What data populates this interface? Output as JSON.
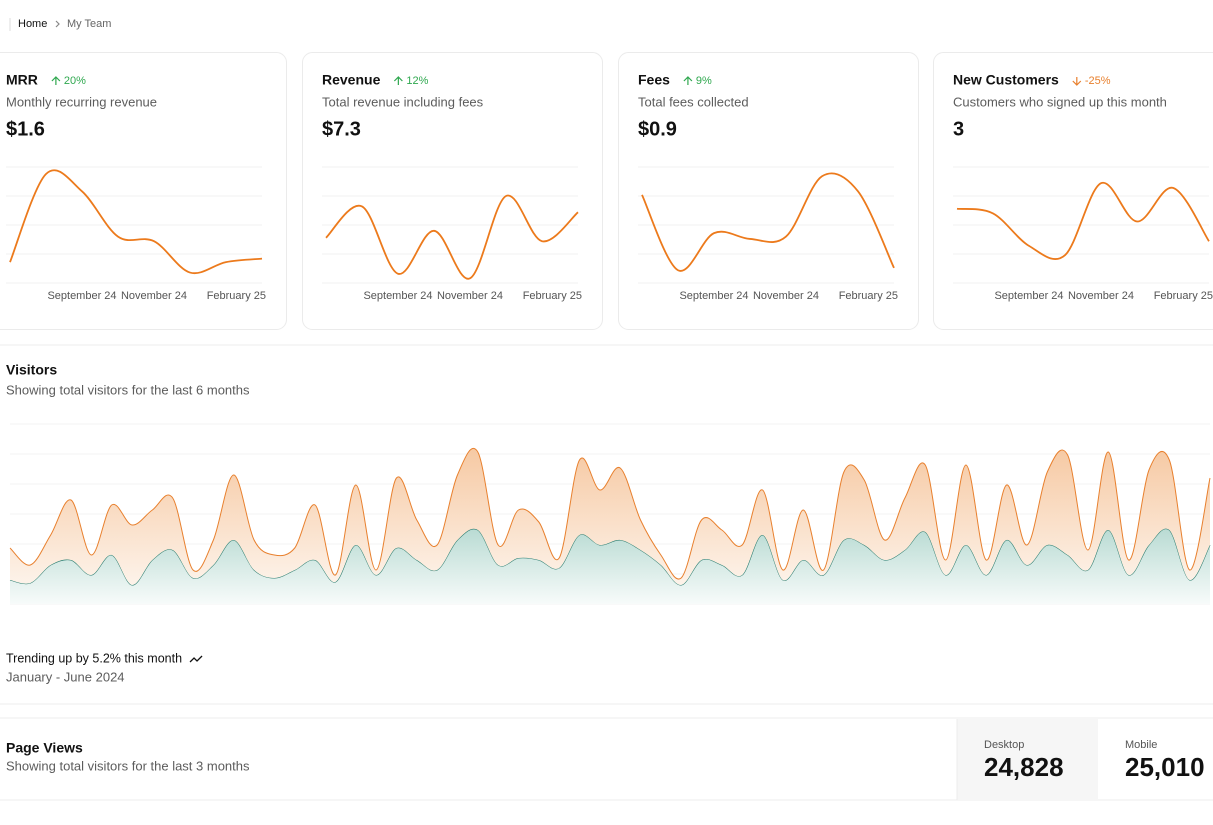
{
  "breadcrumb": [
    "Home",
    "My Team"
  ],
  "cards": [
    {
      "title": "MRR",
      "change": "20%",
      "description": "Monthly recurring revenue",
      "value": "$1.6",
      "chart": {
        "type": "line",
        "color": "#ec7a1c",
        "categories": [
          null,
          null,
          "September 24",
          null,
          "November 24",
          null,
          null,
          "February 25"
        ],
        "values": [
          18,
          94,
          79,
          40,
          36,
          9,
          18,
          21
        ],
        "ylim": [
          0,
          100
        ],
        "yticks": [
          0,
          25,
          50,
          75,
          100
        ],
        "grid": true
      }
    },
    {
      "title": "Revenue",
      "change": "12%",
      "description": "Total revenue including fees",
      "value": "$7.3",
      "chart": {
        "type": "line",
        "color": "#ec7a1c",
        "categories": [
          null,
          null,
          "September 24",
          null,
          "November 24",
          null,
          null,
          "February 25"
        ],
        "values": [
          39,
          66,
          8,
          45,
          4,
          75,
          36,
          61
        ],
        "ylim": [
          0,
          100
        ],
        "yticks": [
          0,
          25,
          50,
          75,
          100
        ],
        "grid": true
      }
    },
    {
      "title": "Fees",
      "change": "9%",
      "description": "Total fees collected",
      "value": "$0.9",
      "chart": {
        "type": "line",
        "color": "#ec7a1c",
        "categories": [
          null,
          null,
          "September 24",
          null,
          "November 24",
          null,
          null,
          "February 25"
        ],
        "values": [
          76,
          11,
          43,
          38,
          40,
          92,
          79,
          13
        ],
        "ylim": [
          0,
          100
        ],
        "yticks": [
          0,
          25,
          50,
          75,
          100
        ],
        "grid": true
      }
    },
    {
      "title": "New Customers",
      "change": "-25%",
      "description": "Customers who signed up this month",
      "value": "3",
      "chart": {
        "type": "line",
        "color": "#ec7a1c",
        "categories": [
          null,
          null,
          "September 24",
          null,
          "November 24",
          null,
          null,
          "February 25"
        ],
        "values": [
          64,
          60,
          32,
          24,
          86,
          53,
          82,
          36
        ],
        "ylim": [
          0,
          100
        ],
        "yticks": [
          0,
          25,
          50,
          75,
          100
        ],
        "grid": true
      }
    }
  ],
  "visitors": {
    "title": "Visitors",
    "subtitle": "Showing total visitors for the last 6 months",
    "chart": {
      "type": "area",
      "stacked": true,
      "ylim": [
        0,
        180
      ],
      "yticks": [
        0,
        30,
        60,
        90,
        120,
        150,
        180
      ],
      "grid": true,
      "series": [
        {
          "color": "#2a7d70",
          "values": [
            24,
            21,
            39,
            44,
            29,
            49,
            19,
            44,
            54,
            26,
            39,
            64,
            34,
            26,
            34,
            44,
            22,
            59,
            29,
            56,
            44,
            34,
            64,
            74,
            39,
            46,
            44,
            36,
            69,
            59,
            64,
            54,
            39,
            19,
            44,
            39,
            29,
            69,
            24,
            44,
            29,
            64,
            59,
            44,
            54,
            72,
            29,
            59,
            29,
            64,
            39,
            59,
            49,
            34,
            74,
            29,
            59,
            74,
            24,
            59
          ]
        },
        {
          "color": "#e8802e",
          "values": [
            32,
            18,
            30,
            60,
            20,
            50,
            60,
            50,
            52,
            8,
            25,
            65,
            30,
            23,
            22,
            55,
            7,
            60,
            5,
            70,
            40,
            25,
            65,
            78,
            20,
            48,
            38,
            10,
            75,
            55,
            72,
            30,
            10,
            7,
            40,
            35,
            30,
            45,
            10,
            50,
            5,
            68,
            65,
            20,
            52,
            67,
            15,
            80,
            15,
            55,
            20,
            73,
            100,
            20,
            78,
            15,
            75,
            70,
            10,
            67
          ]
        }
      ]
    },
    "footer": {
      "trend": "Trending up by 5.2% this month",
      "period": "January - June 2024"
    }
  },
  "page_views": {
    "title": "Page Views",
    "subtitle": "Showing total visitors for the last 3 months",
    "stats": [
      {
        "label": "Desktop",
        "value": "24,828"
      },
      {
        "label": "Mobile",
        "value": "25,010"
      }
    ]
  }
}
